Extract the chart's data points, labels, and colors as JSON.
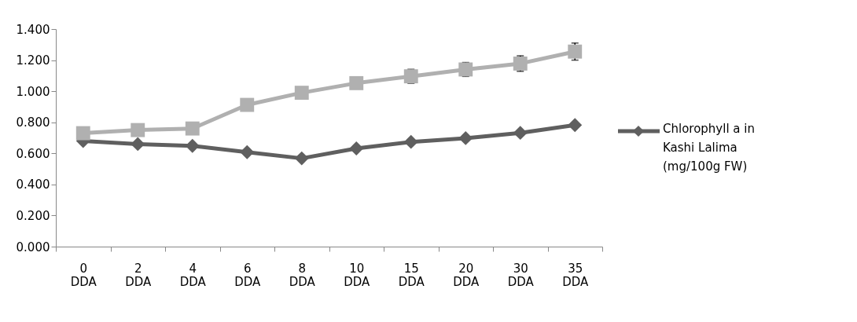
{
  "chart_data": {
    "type": "line",
    "categories": [
      "0 DDA",
      "2 DDA",
      "4 DDA",
      "6 DDA",
      "8 DDA",
      "10 DDA",
      "15 DDA",
      "20 DDA",
      "30 DDA",
      "35 DDA"
    ],
    "series": [
      {
        "name": "Chlorophyll a in Kashi Lalima (mg/100g FW)",
        "color": "#5f5f5f",
        "marker": "diamond",
        "values": [
          0.68,
          0.66,
          0.648,
          0.608,
          0.568,
          0.632,
          0.674,
          0.698,
          0.732,
          0.782
        ]
      },
      {
        "color": "#b0b0b0",
        "marker": "square",
        "values": [
          0.73,
          0.75,
          0.76,
          0.912,
          0.99,
          1.052,
          1.096,
          1.14,
          1.178,
          1.255
        ],
        "errors": [
          null,
          null,
          null,
          null,
          null,
          null,
          0.045,
          0.045,
          0.05,
          0.055
        ]
      }
    ],
    "ylim": [
      0,
      1.4
    ],
    "yticks": [
      {
        "value": 0,
        "label": "0.000"
      },
      {
        "value": 0.2,
        "label": "0.200"
      },
      {
        "value": 0.4,
        "label": "0.400"
      },
      {
        "value": 0.6,
        "label": "0.600"
      },
      {
        "value": 0.8,
        "label": "0.800"
      },
      {
        "value": 1.0,
        "label": "1.000"
      },
      {
        "value": 1.2,
        "label": "1.200"
      },
      {
        "value": 1.4,
        "label": "1.400"
      }
    ],
    "grid": false,
    "legend": "right"
  }
}
